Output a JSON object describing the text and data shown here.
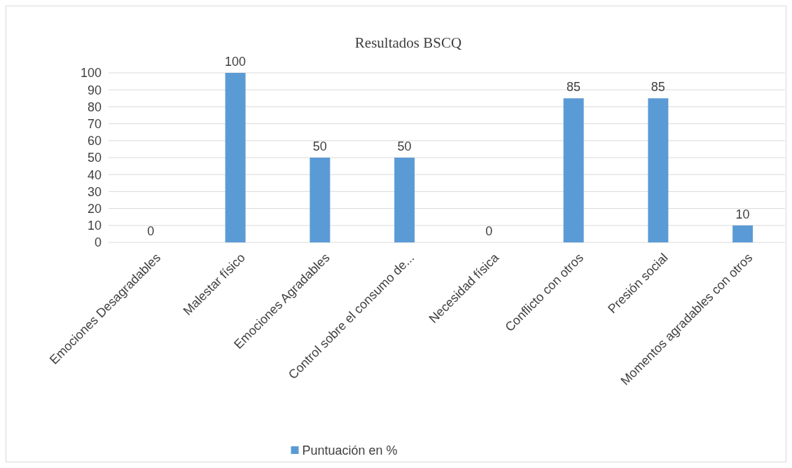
{
  "chart_data": {
    "type": "bar",
    "title": "Resultados BSCQ",
    "categories": [
      "Emociones Desagradables",
      "Malestar físico",
      "Emociones Agradables",
      "Control sobre el consumo de...",
      "Necesidad física",
      "Conflicto con otros",
      "Presión social",
      "Momentos agradables con otros"
    ],
    "series": [
      {
        "name": "Puntuación en %",
        "color": "#5b9bd5",
        "values": [
          0,
          100,
          50,
          50,
          0,
          85,
          85,
          10
        ]
      }
    ],
    "ylim": [
      0,
      100
    ],
    "yticks": [
      0,
      10,
      20,
      30,
      40,
      50,
      60,
      70,
      80,
      90,
      100
    ],
    "grid": "y",
    "legend": "bottom",
    "data_labels": true
  }
}
